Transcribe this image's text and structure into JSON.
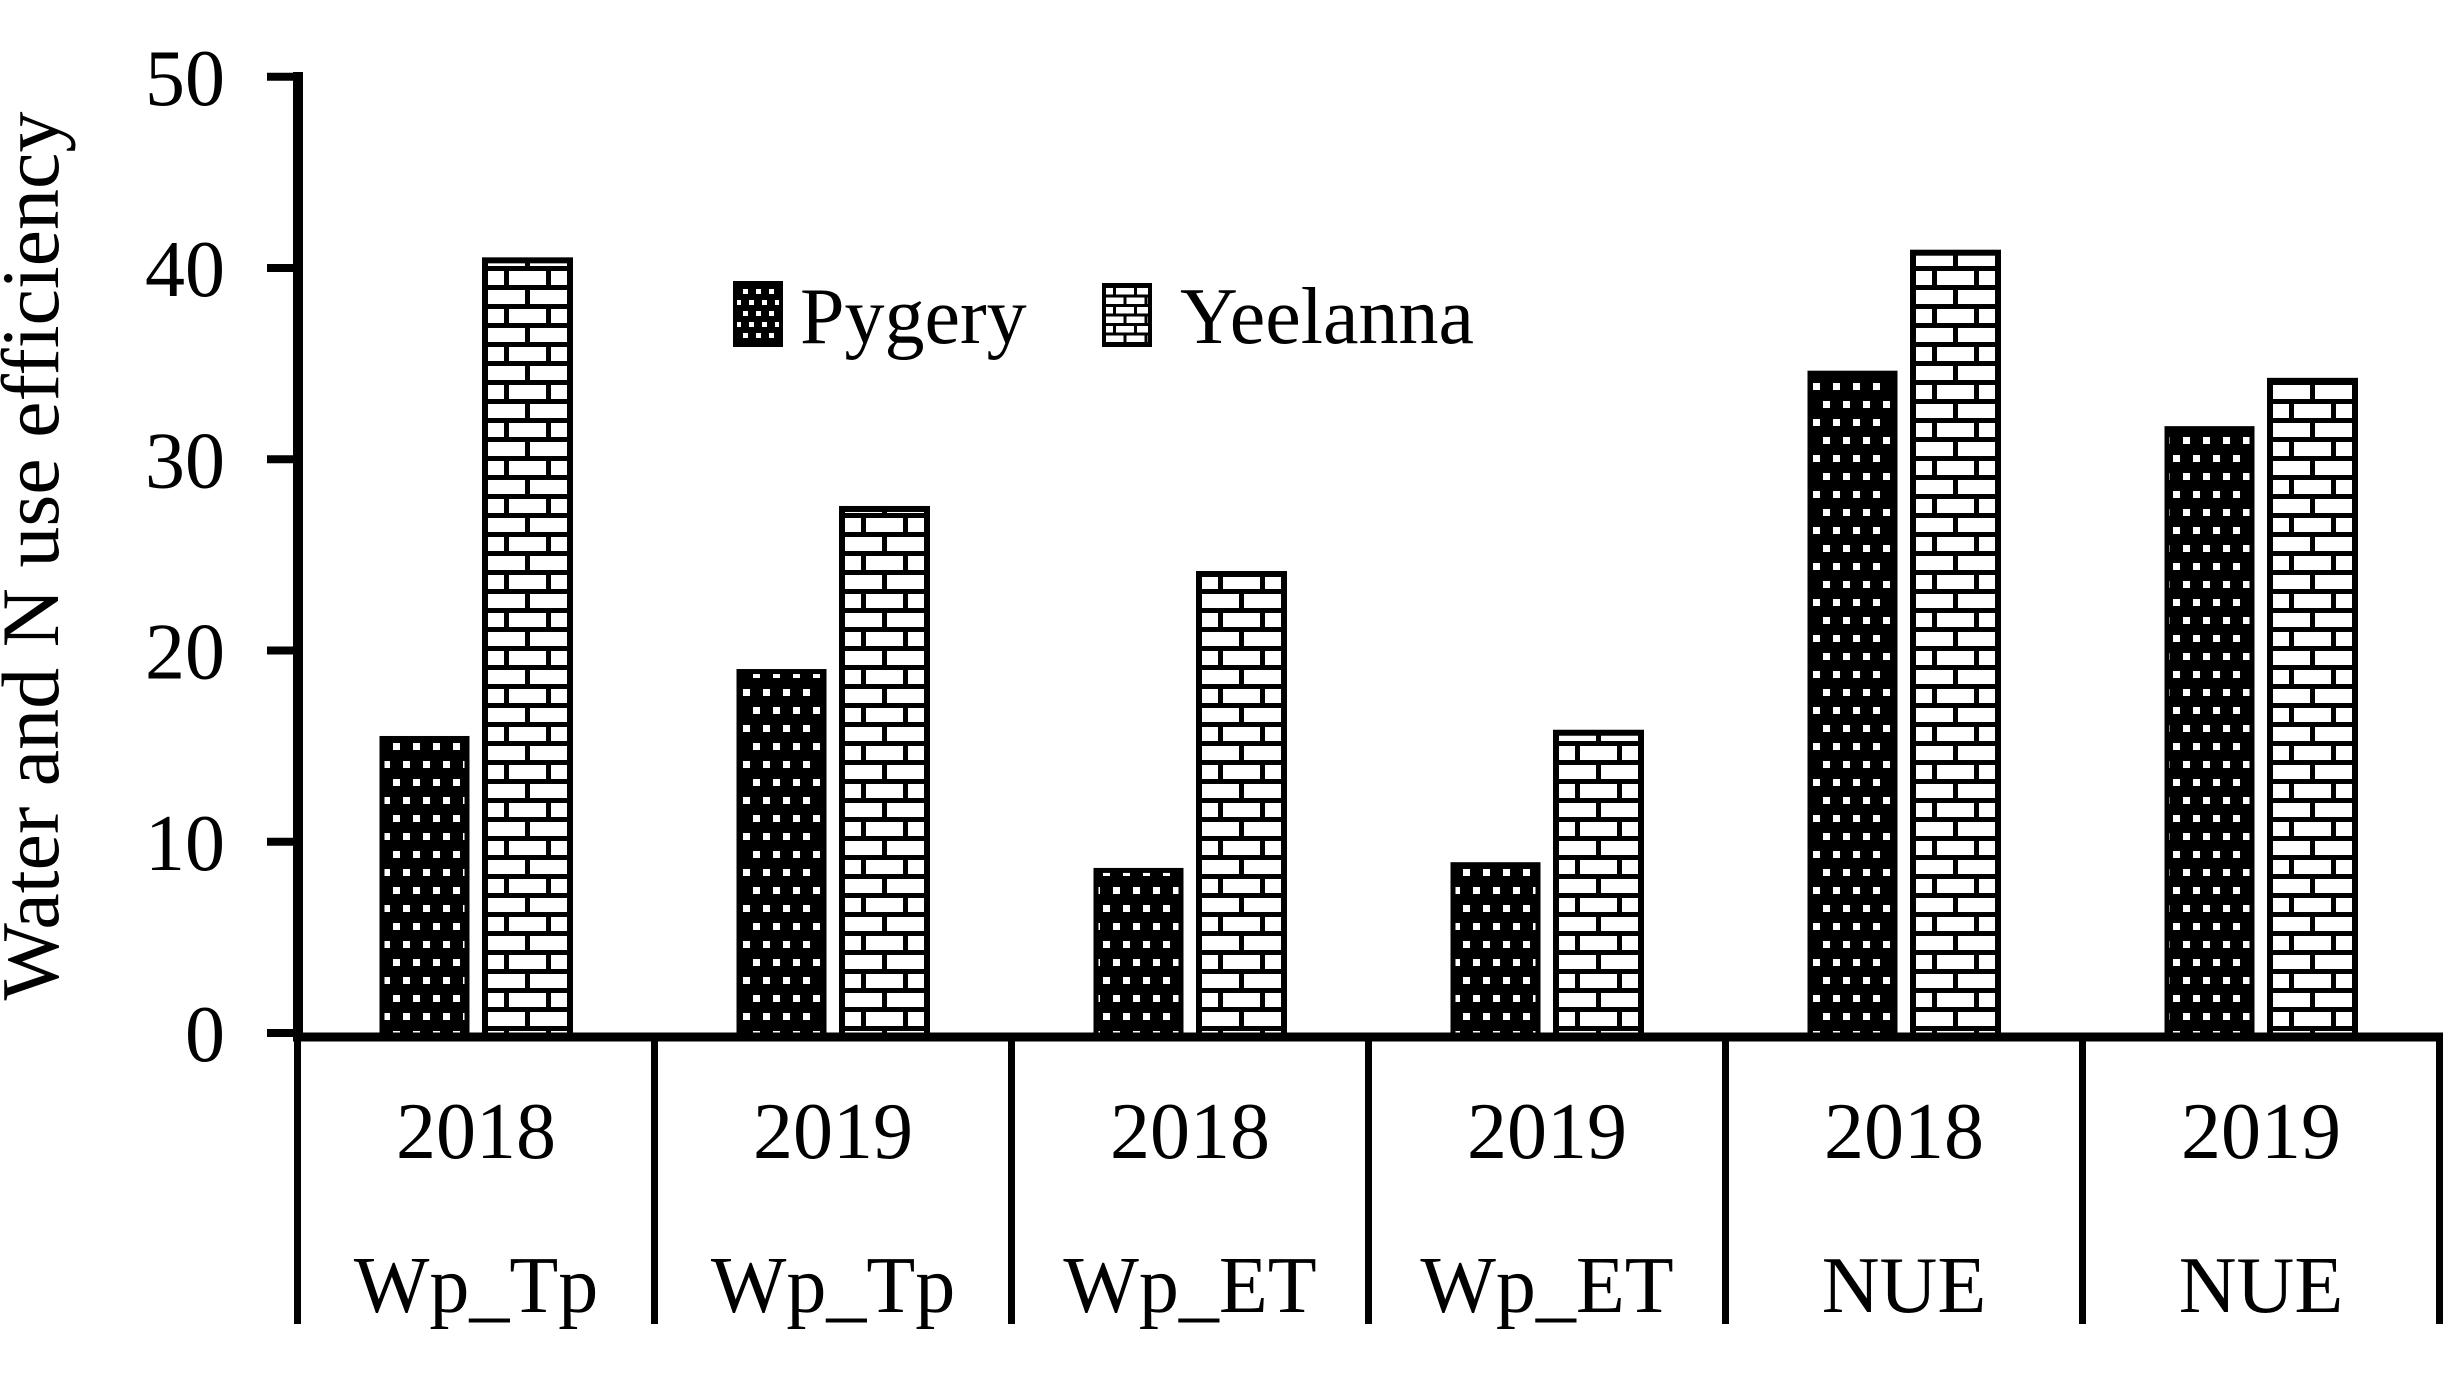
{
  "chart_data": {
    "type": "bar",
    "title": "",
    "ylabel": "Water and N use efficiency",
    "xlabel": "",
    "ylim": [
      0,
      50
    ],
    "yticks": [
      0,
      10,
      20,
      30,
      40,
      50
    ],
    "grid": false,
    "legend_position": "inside-top-center",
    "categories": [
      {
        "year": "2018",
        "measure": "Wp_Tp"
      },
      {
        "year": "2019",
        "measure": "Wp_Tp"
      },
      {
        "year": "2018",
        "measure": "Wp_ET"
      },
      {
        "year": "2019",
        "measure": "Wp_ET"
      },
      {
        "year": "2018",
        "measure": "NUE"
      },
      {
        "year": "2019",
        "measure": "NUE"
      }
    ],
    "series": [
      {
        "name": "Pygery",
        "pattern": "black-with-white-dots",
        "values": [
          15.4,
          18.9,
          8.5,
          8.8,
          34.5,
          31.6
        ]
      },
      {
        "name": "Yeelanna",
        "pattern": "white-brick",
        "values": [
          40.4,
          27.4,
          24.0,
          15.7,
          40.8,
          34.1
        ]
      }
    ],
    "colors": {
      "foreground": "#000000",
      "background": "#ffffff"
    }
  }
}
